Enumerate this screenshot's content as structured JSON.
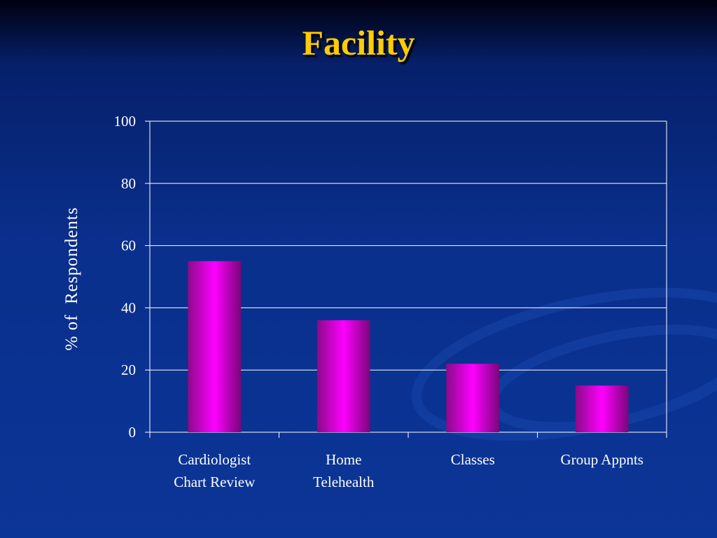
{
  "chart_data": {
    "type": "bar",
    "title": "Facility",
    "y_label": "% of  Respondents",
    "categories": [
      "Cardiologist\nChart Review",
      "Home\nTelehealth",
      "Classes",
      "Group Appnts"
    ],
    "values": [
      55,
      36,
      22,
      15
    ],
    "color": "#ff00ff",
    "ylim": [
      0,
      100
    ],
    "yticks": [
      0,
      20,
      40,
      60,
      80,
      100
    ],
    "grid": true
  }
}
